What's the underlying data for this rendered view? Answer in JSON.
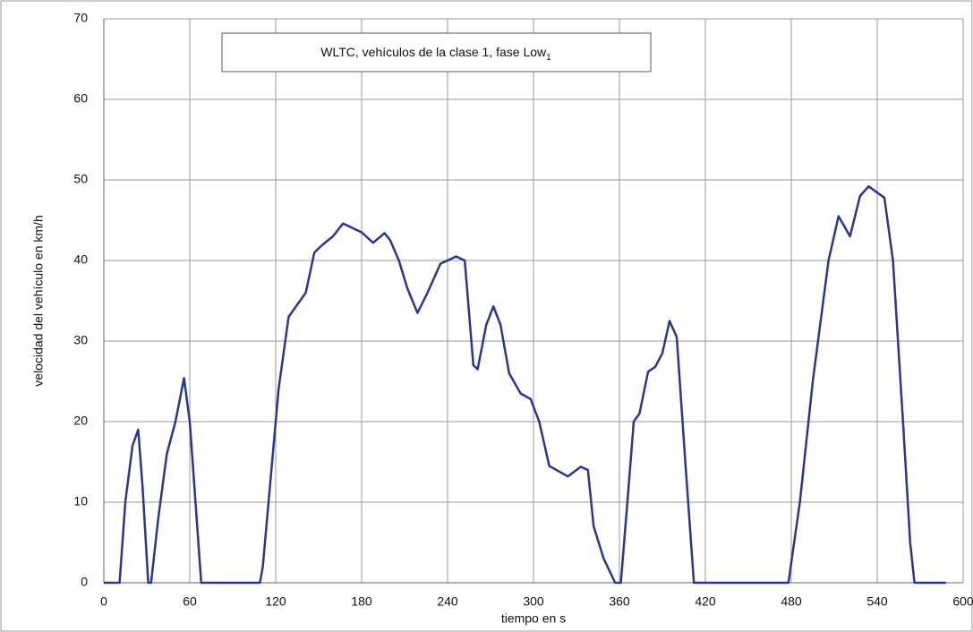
{
  "chart_data": {
    "type": "line",
    "title": {
      "text": "WLTC, vehículos de la clase 1, fase Low",
      "subscript": "1"
    },
    "x_label": "tiempo en s",
    "y_label": "velocidad del vehículo en km/h",
    "xlim": [
      0,
      600
    ],
    "xticks": [
      0,
      60,
      120,
      180,
      240,
      300,
      360,
      420,
      480,
      540,
      600
    ],
    "ylim": [
      0,
      70
    ],
    "yticks": [
      0,
      10,
      20,
      30,
      40,
      50,
      60,
      70
    ],
    "grid": true,
    "series": [
      {
        "color": "#2b368c",
        "x": [
          0,
          11,
          15,
          20,
          24,
          27,
          31,
          33,
          38,
          44,
          50,
          56,
          60,
          68,
          109,
          111,
          115,
          122,
          129,
          135,
          141,
          147,
          153,
          160,
          167,
          174,
          180,
          188,
          196,
          200,
          206,
          212,
          219,
          226,
          235,
          246,
          252,
          258,
          261,
          267,
          272,
          277,
          283,
          291,
          298,
          304,
          311,
          318,
          324,
          333,
          338,
          342,
          349,
          357,
          361,
          366,
          370,
          374,
          380,
          385,
          390,
          395,
          400,
          406,
          412,
          478,
          486,
          495,
          506,
          513,
          521,
          528,
          534,
          541,
          545,
          551,
          558,
          563,
          566,
          588
        ],
        "values": [
          0,
          0,
          10,
          17,
          19,
          12,
          0,
          0,
          8,
          16,
          20,
          25.4,
          20,
          0,
          0,
          2,
          10,
          24,
          33,
          34.5,
          36,
          41,
          42,
          43,
          44.6,
          44,
          43.5,
          42.2,
          43.4,
          42.5,
          40,
          36.5,
          33.5,
          36,
          39.6,
          40.5,
          40,
          27,
          26.5,
          32,
          34.3,
          32,
          26,
          23.5,
          22.8,
          20,
          14.5,
          13.8,
          13.2,
          14.4,
          14,
          7,
          3,
          0,
          0,
          11,
          20,
          21,
          26.2,
          26.8,
          28.5,
          32.5,
          30.5,
          15,
          0,
          0,
          10,
          25,
          40,
          45.5,
          43,
          48,
          49.2,
          48.3,
          47.8,
          40,
          20,
          5,
          0,
          0
        ]
      }
    ]
  }
}
